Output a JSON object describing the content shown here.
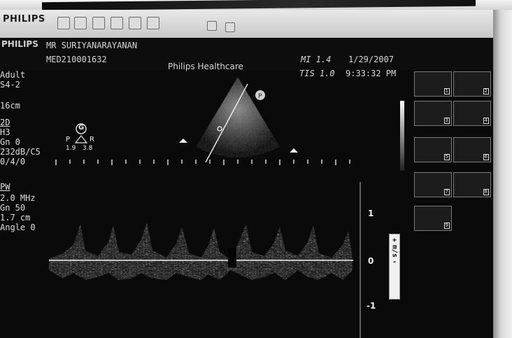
{
  "toolbar": {
    "brand": "PHILIPS",
    "icons": [
      "return-icon",
      "save-icon",
      "print-icon",
      "zoom-icon",
      "search-icon",
      "settings-icon",
      "measure-icon",
      "cursor-icon"
    ]
  },
  "header": {
    "brand": "PHILIPS",
    "patient_name": "MR SURIYANARAYANAN",
    "patient_id": "MED210001632",
    "institution": "Philips Healthcare",
    "mi": "MI 1.4",
    "tis": "TIS 1.0",
    "date": "1/29/2007",
    "time": "9:33:32 PM"
  },
  "params": {
    "preset": "Adult",
    "probe": "S4-2",
    "depth": "16cm",
    "mode_2d": "2D",
    "harmonics": "H3",
    "gain": "Gn 0",
    "power": "232dB/C5",
    "persist": "0/4/0",
    "mode_pw": "PW",
    "freq": "2.0 MHz",
    "pw_gain": "Gn 50",
    "gate": "1.7 cm",
    "angle": "Angle 0"
  },
  "orientation": {
    "marker": "G",
    "left": "P",
    "right": "R",
    "left_val": "1.9",
    "right_val": "3.8"
  },
  "doppler": {
    "scale": [
      "1",
      "0",
      "-1"
    ],
    "unit": "m/s"
  },
  "thumbnails": [
    "1",
    "2",
    "3",
    "4",
    "5",
    "6",
    "7",
    "8",
    "9"
  ]
}
